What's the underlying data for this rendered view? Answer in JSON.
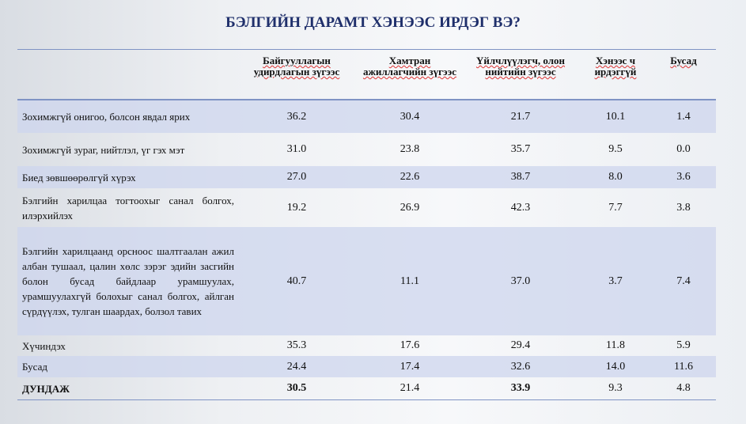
{
  "title": "БЭЛГИЙН ДАРАМТ ХЭНЭЭС ИРДЭГ ВЭ?",
  "table": {
    "columns": [
      "Байгууллагын удирдлагын зүгээс",
      "Хамтран ажиллагчийн зүгээс",
      "Үйлчлүүлэгч, олон нийтийн зүгээс",
      "Хэнээс ч ирдэггүй",
      "Бусад"
    ],
    "rows": [
      {
        "label": "Зохимжгүй онигоо, болсон явдал ярих",
        "values": [
          "36.2",
          "30.4",
          "21.7",
          "10.1",
          "1.4"
        ]
      },
      {
        "label": "Зохимжгүй зураг, нийтлэл, үг  гэх мэт",
        "values": [
          "31.0",
          "23.8",
          "35.7",
          "9.5",
          "0.0"
        ]
      },
      {
        "label": "Биед зөвшөөрөлгүй хүрэх",
        "values": [
          "27.0",
          "22.6",
          "38.7",
          "8.0",
          "3.6"
        ]
      },
      {
        "label": "Бэлгийн харилцаа тогтоохыг санал болгох, илэрхийлэх",
        "values": [
          "19.2",
          "26.9",
          "42.3",
          "7.7",
          "3.8"
        ]
      },
      {
        "label": "Бэлгийн харилцаанд орсноос шалтгаалан ажил албан тушаал, цалин хөлс зэрэг эдийн засгийн болон бусад байдлаар урамшуулах, урамшуулахгүй болохыг санал болгох, айлган сүрдүүлэх, тулган шаардах, болзол тавих",
        "values": [
          "40.7",
          "11.1",
          "37.0",
          "3.7",
          "7.4"
        ]
      },
      {
        "label": "Хүчиндэх",
        "values": [
          "35.3",
          "17.6",
          "29.4",
          "11.8",
          "5.9"
        ]
      },
      {
        "label": "Бусад",
        "values": [
          "24.4",
          "17.4",
          "32.6",
          "14.0",
          "11.6"
        ]
      },
      {
        "label": "ДУНДАЖ",
        "values": [
          "30.5",
          "21.4",
          "33.9",
          "9.3",
          "4.8"
        ]
      }
    ]
  }
}
